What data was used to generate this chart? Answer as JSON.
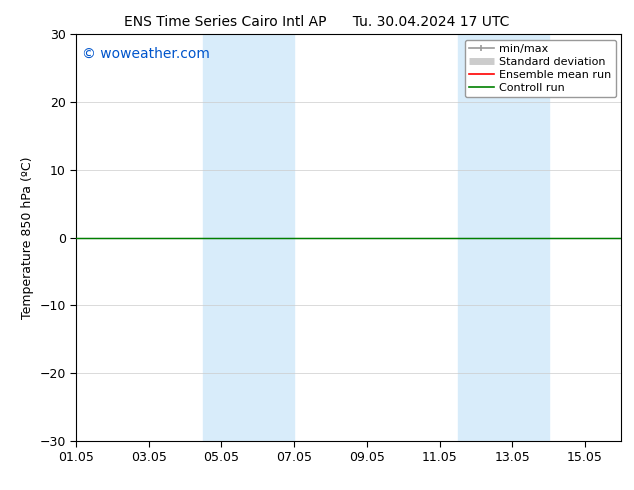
{
  "title_left": "ENS Time Series Cairo Intl AP",
  "title_right": "Tu. 30.04.2024 17 UTC",
  "ylabel": "Temperature 850 hPa (ºC)",
  "watermark": "© woweather.com",
  "watermark_color": "#0055cc",
  "xlim_start": 0,
  "xlim_end": 15,
  "ylim": [
    -30,
    30
  ],
  "yticks": [
    -30,
    -20,
    -10,
    0,
    10,
    20,
    30
  ],
  "xtick_labels": [
    "01.05",
    "03.05",
    "05.05",
    "07.05",
    "09.05",
    "11.05",
    "13.05",
    "15.05"
  ],
  "xtick_positions": [
    0,
    2,
    4,
    6,
    8,
    10,
    12,
    14
  ],
  "bg_color": "#ffffff",
  "plot_bg_color": "#ffffff",
  "shaded_bands": [
    {
      "x_start": 3.5,
      "x_end": 5.5,
      "color": "#d8ecfa"
    },
    {
      "x_start": 5.5,
      "x_end": 6.0,
      "color": "#d8ecfa"
    },
    {
      "x_start": 10.5,
      "x_end": 11.5,
      "color": "#d8ecfa"
    },
    {
      "x_start": 11.5,
      "x_end": 13.0,
      "color": "#d8ecfa"
    }
  ],
  "control_run_y": 0.0,
  "control_run_color": "#008000",
  "ensemble_mean_color": "#ff0000",
  "minmax_color": "#999999",
  "std_dev_color": "#cccccc",
  "grid_color": "#cccccc",
  "spine_color": "#000000",
  "tick_color": "#000000",
  "font_size_title": 10,
  "font_size_axis": 9,
  "font_size_tick": 9,
  "font_size_legend": 8,
  "font_size_watermark": 10
}
